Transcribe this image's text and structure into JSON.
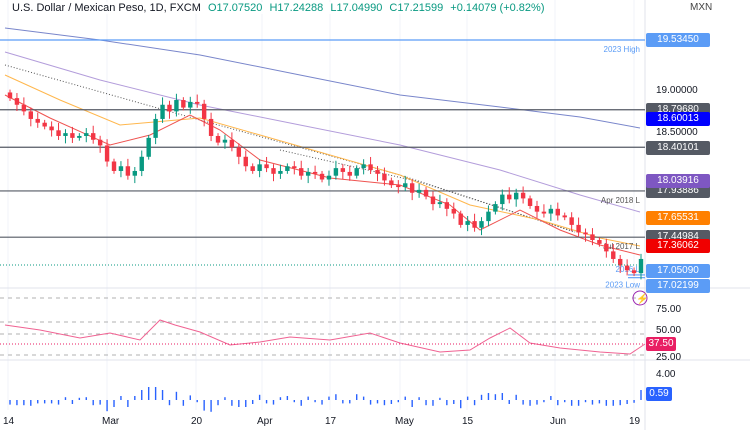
{
  "header": {
    "symbol": "U.S. Dollar / Mexican Peso, 1D, FXCM",
    "open": "O17.07520",
    "high": "H17.24288",
    "low": "L17.04990",
    "close": "C17.21599",
    "change": "+0.14079 (+0.82%)",
    "currency": "MXN"
  },
  "chart_data": {
    "type": "candlestick",
    "title": "U.S. Dollar / Mexican Peso, 1D, FXCM",
    "x_ticks": [
      "14",
      "Mar",
      "20",
      "Apr",
      "17",
      "May",
      "15",
      "Jun",
      "19"
    ],
    "y_ticks": [
      "19.00000",
      "18.50000"
    ],
    "closes": [
      18.92,
      18.85,
      18.78,
      18.7,
      18.66,
      18.62,
      18.58,
      18.52,
      18.55,
      18.5,
      18.52,
      18.55,
      18.48,
      18.42,
      18.25,
      18.15,
      18.2,
      18.1,
      18.15,
      18.3,
      18.5,
      18.7,
      18.85,
      18.78,
      18.9,
      18.82,
      18.88,
      18.86,
      18.7,
      18.52,
      18.45,
      18.48,
      18.4,
      18.3,
      18.2,
      18.15,
      18.22,
      18.18,
      18.12,
      18.15,
      18.2,
      18.18,
      18.1,
      18.14,
      18.12,
      18.06,
      18.1,
      18.18,
      18.14,
      18.1,
      18.18,
      18.22,
      18.16,
      18.12,
      18.05,
      18.0,
      17.98,
      18.02,
      17.92,
      17.95,
      17.88,
      17.8,
      17.82,
      17.75,
      17.7,
      17.58,
      17.62,
      17.55,
      17.62,
      17.72,
      17.8,
      17.9,
      17.85,
      17.92,
      17.86,
      17.78,
      17.72,
      17.7,
      17.75,
      17.68,
      17.66,
      17.58,
      17.5,
      17.48,
      17.42,
      17.38,
      17.3,
      17.22,
      17.15,
      17.1,
      17.07,
      17.22
    ],
    "first_open": 18.98,
    "levels": [
      {
        "label": "2023 High",
        "value": "19.53450",
        "color": "#5b9cf6"
      },
      {
        "label": "",
        "value": "18.79680",
        "color": "#555a64"
      },
      {
        "label": "",
        "value": "18.40101",
        "color": "#555a64"
      },
      {
        "label": "Apr 2018 L",
        "value": "17.93886",
        "color": "#555a64"
      },
      {
        "label": "Jul 2017 L",
        "value": "17.44984",
        "color": "#555a64"
      },
      {
        "label": "2016 L",
        "value": "17.05090",
        "color": "#5b9cf6"
      },
      {
        "label": "2023 Low",
        "value": "17.02199",
        "color": "#5b9cf6"
      }
    ],
    "moving_averages": [
      {
        "name": "MA blue",
        "value": "18.60013",
        "color": "#0000ff"
      },
      {
        "name": "MA purple",
        "value": "18.03916",
        "color": "#7e57c2"
      },
      {
        "name": "MA orange",
        "value": "17.65531",
        "color": "#ff8000"
      },
      {
        "name": "MA red",
        "value": "17.36062",
        "color": "#f00000"
      }
    ],
    "rsi": {
      "ticks": [
        "75.00",
        "50.00",
        "25.00"
      ],
      "value": "37.50",
      "color": "#e91e63"
    },
    "histogram": {
      "ticks": [
        "4.00"
      ],
      "value": "0.59",
      "color": "#2962ff"
    }
  }
}
